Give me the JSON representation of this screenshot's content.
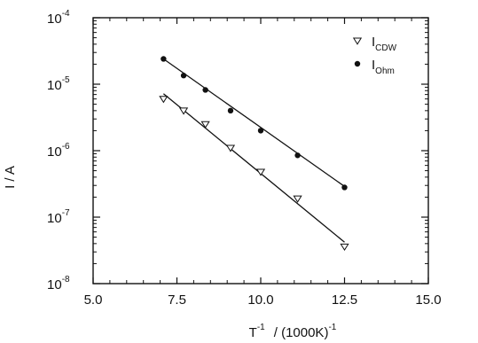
{
  "chart_data": {
    "type": "scatter",
    "xscale": "linear",
    "yscale": "log",
    "xlim": [
      5.0,
      15.0
    ],
    "ylim": [
      1e-08,
      0.0001
    ],
    "xticks": [
      5.0,
      7.5,
      10.0,
      12.5,
      15.0
    ],
    "xtick_labels": [
      "5.0",
      "7.5",
      "10.0",
      "12.5",
      "15.0"
    ],
    "yticks": [
      -8,
      -7,
      -6,
      -5,
      -4
    ],
    "ytick_base": "10",
    "ytick_exponents": [
      "-8",
      "-7",
      "-6",
      "-5",
      "-4"
    ],
    "xlabel": {
      "main": "T",
      "sup": "-1",
      "rest": "/ (1000K)",
      "sup2": "-1"
    },
    "ylabel": "I / A",
    "grid": false,
    "legend_position": "top-right",
    "series": [
      {
        "name": "I",
        "name_sub": "CDW",
        "marker": "open-triangle-down",
        "x": [
          7.1,
          7.7,
          8.35,
          9.1,
          10.0,
          11.1,
          12.5
        ],
        "y": [
          6e-06,
          4e-06,
          2.5e-06,
          1.1e-06,
          4.8e-07,
          1.9e-07,
          3.6e-08
        ],
        "fit": {
          "x": [
            7.1,
            12.5
          ],
          "y": [
            7.2e-06,
            4.2e-08
          ]
        }
      },
      {
        "name": "I",
        "name_sub": "Ohm",
        "marker": "filled-circle",
        "x": [
          7.1,
          7.7,
          8.35,
          9.1,
          10.0,
          11.1,
          12.5
        ],
        "y": [
          2.4e-05,
          1.35e-05,
          8.2e-06,
          4e-06,
          2e-06,
          8.5e-07,
          2.8e-07
        ],
        "fit": {
          "x": [
            7.1,
            12.5
          ],
          "y": [
            2.4e-05,
            2.9e-07
          ]
        }
      }
    ]
  }
}
